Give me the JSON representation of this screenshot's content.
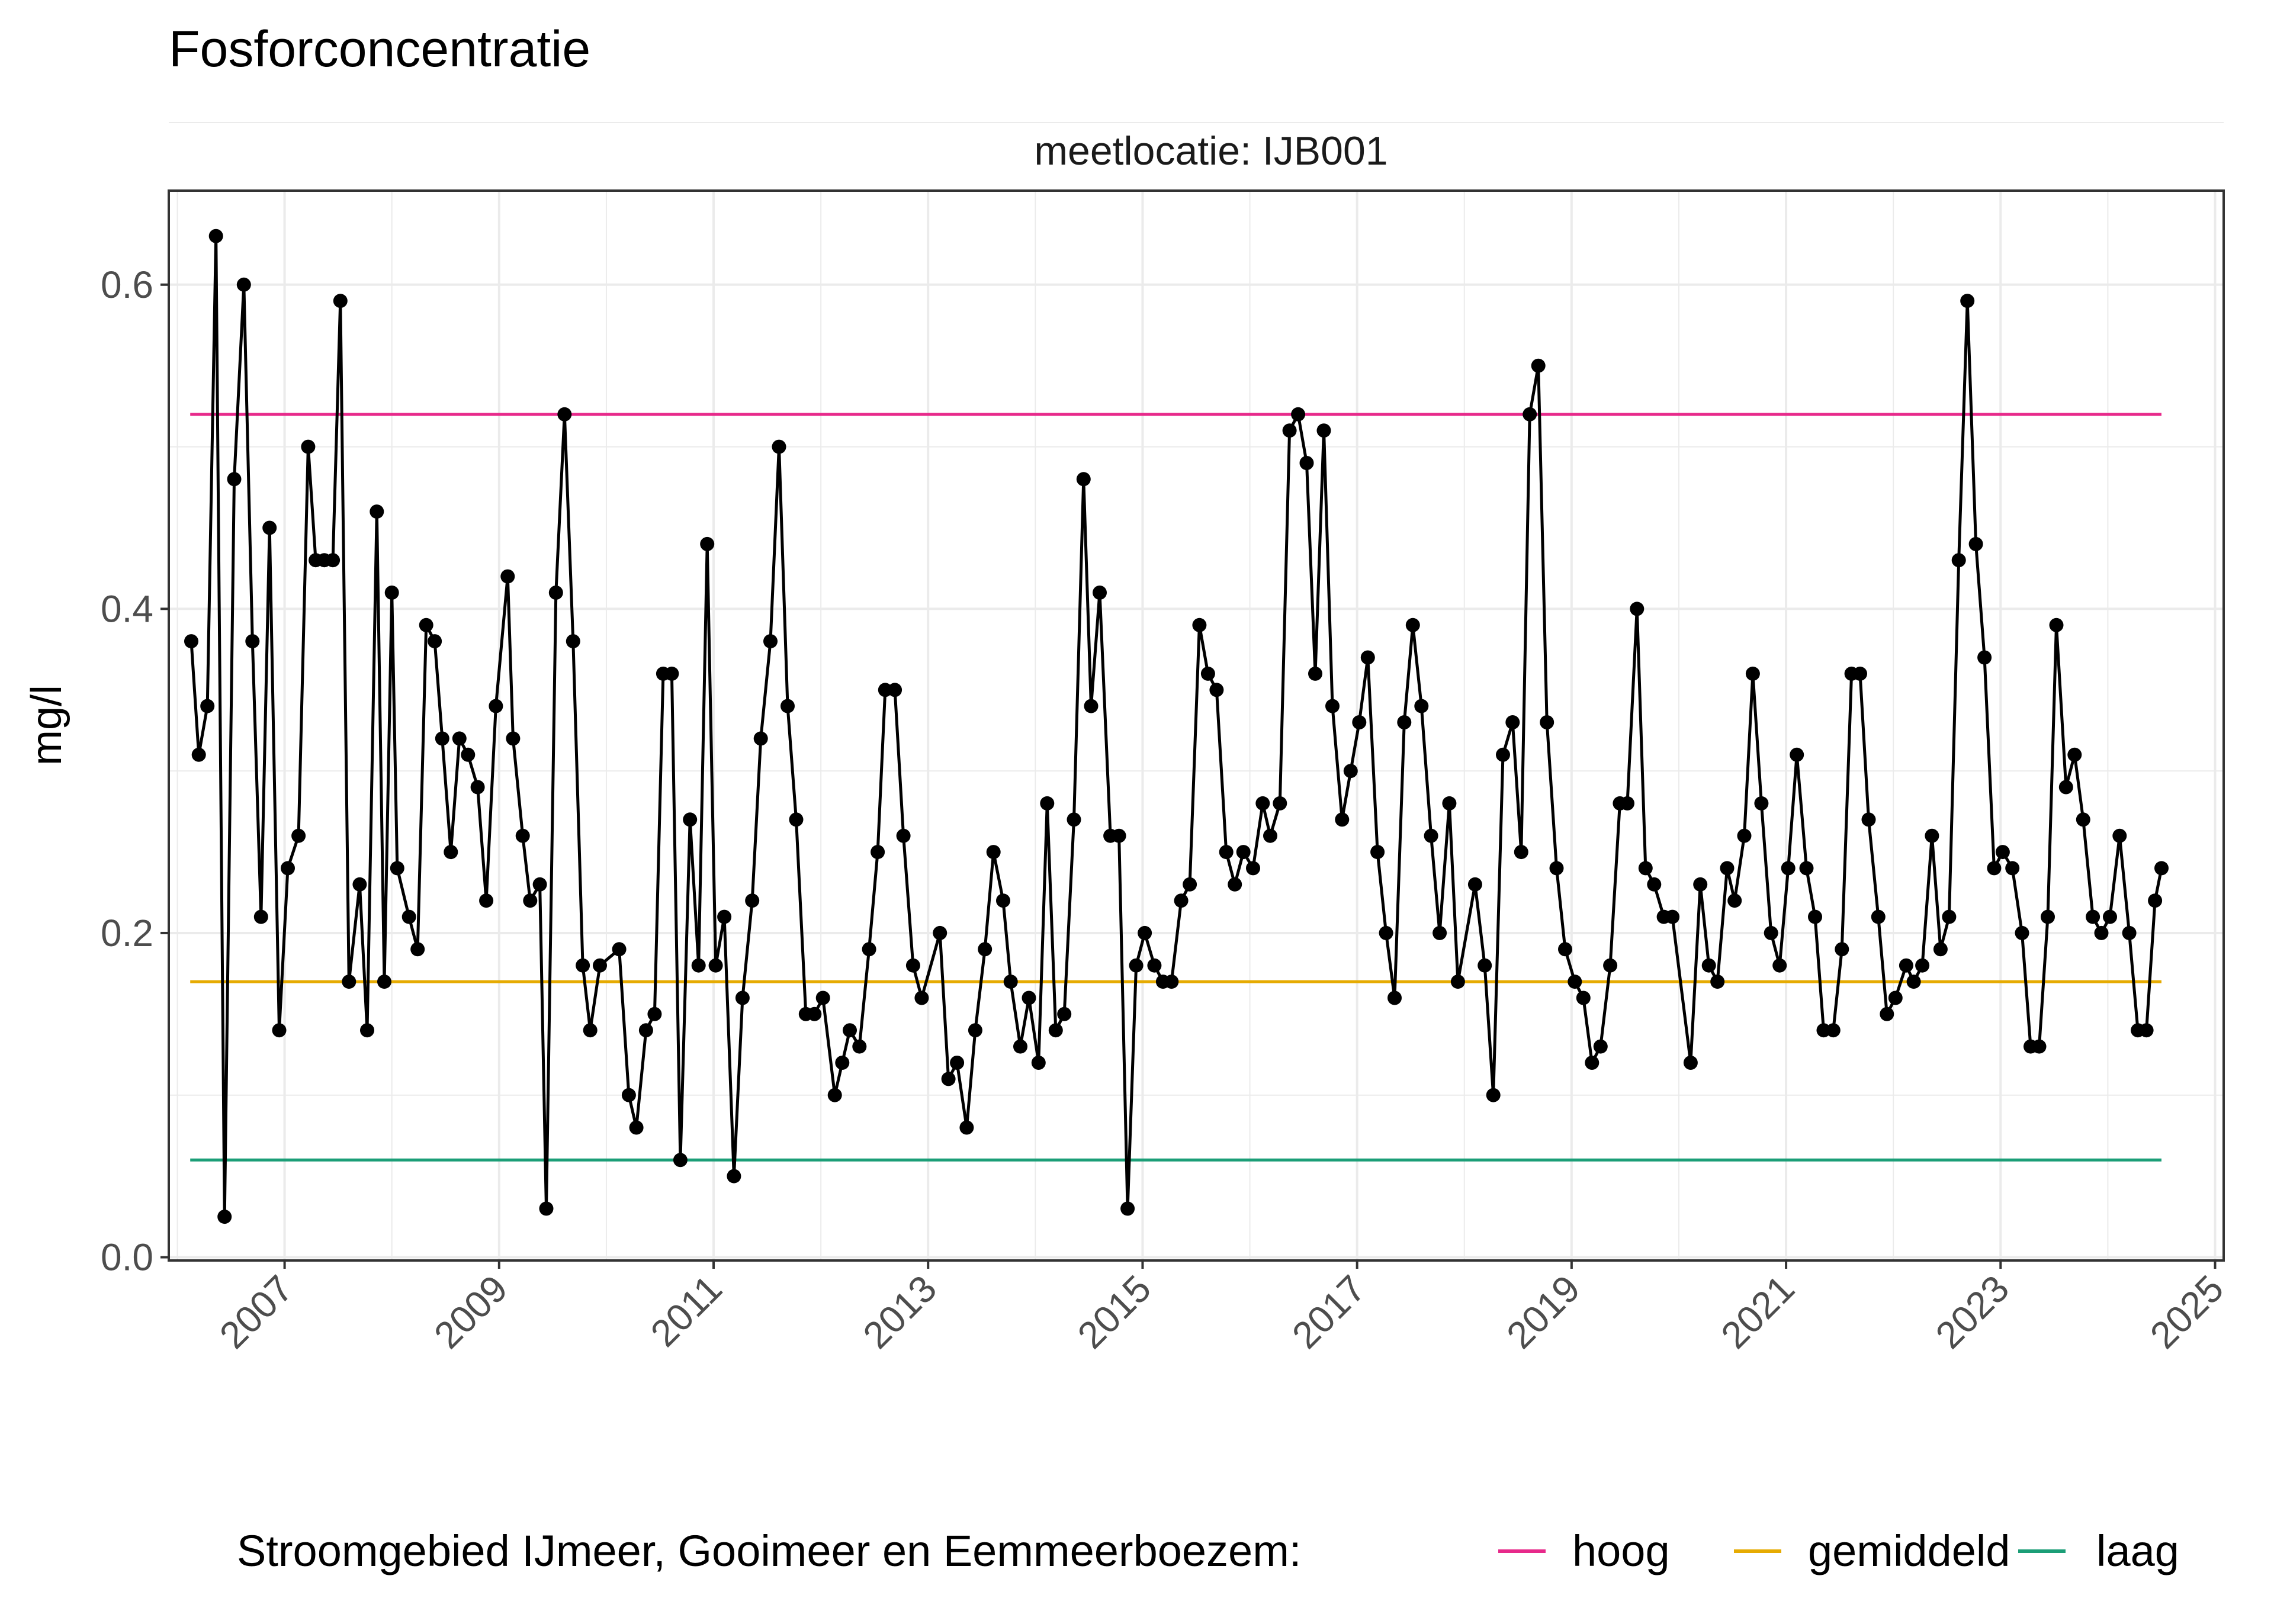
{
  "colors": {
    "hoog": "#e7298a",
    "gemiddeld": "#e6ab02",
    "laag": "#1b9e77",
    "series": "#000000",
    "grid": "#ebebeb",
    "panel_border": "#333333"
  },
  "chart_data": {
    "type": "line",
    "title": "Fosforconcentratie",
    "facet_label": "meetlocatie: IJB001",
    "ylabel": "mg/l",
    "xlabel": "",
    "xlim": [
      2005.92,
      2025.08
    ],
    "ylim": [
      -0.002,
      0.658
    ],
    "x_ticks": [
      "2007",
      "2009",
      "2011",
      "2013",
      "2015",
      "2017",
      "2019",
      "2021",
      "2023",
      "2025"
    ],
    "y_ticks": [
      "0.0",
      "0.2",
      "0.4",
      "0.6"
    ],
    "grid": true,
    "legend_position": "bottom",
    "legend": {
      "title": "Stroomgebied IJmeer, Gooimeer en Eemmeerboezem:",
      "items": [
        "hoog",
        "gemiddeld",
        "laag"
      ]
    },
    "reference_lines": [
      {
        "name": "hoog",
        "value": 0.52,
        "x_start": 2006.12,
        "x_end": 2024.5
      },
      {
        "name": "gemiddeld",
        "value": 0.17,
        "x_start": 2006.12,
        "x_end": 2024.5
      },
      {
        "name": "laag",
        "value": 0.06,
        "x_start": 2006.12,
        "x_end": 2024.5
      }
    ],
    "series": [
      {
        "values": [
          [
            2006.13,
            0.38
          ],
          [
            2006.2,
            0.31
          ],
          [
            2006.28,
            0.34
          ],
          [
            2006.36,
            0.63
          ],
          [
            2006.44,
            0.025
          ],
          [
            2006.53,
            0.48
          ],
          [
            2006.62,
            0.6
          ],
          [
            2006.7,
            0.38
          ],
          [
            2006.78,
            0.21
          ],
          [
            2006.86,
            0.45
          ],
          [
            2006.95,
            0.14
          ],
          [
            2007.03,
            0.24
          ],
          [
            2007.13,
            0.26
          ],
          [
            2007.22,
            0.5
          ],
          [
            2007.29,
            0.43
          ],
          [
            2007.37,
            0.43
          ],
          [
            2007.45,
            0.43
          ],
          [
            2007.52,
            0.59
          ],
          [
            2007.6,
            0.17
          ],
          [
            2007.7,
            0.23
          ],
          [
            2007.77,
            0.14
          ],
          [
            2007.86,
            0.46
          ],
          [
            2007.93,
            0.17
          ],
          [
            2008.0,
            0.41
          ],
          [
            2008.05,
            0.24
          ],
          [
            2008.16,
            0.21
          ],
          [
            2008.24,
            0.19
          ],
          [
            2008.32,
            0.39
          ],
          [
            2008.4,
            0.38
          ],
          [
            2008.47,
            0.32
          ],
          [
            2008.55,
            0.25
          ],
          [
            2008.63,
            0.32
          ],
          [
            2008.71,
            0.31
          ],
          [
            2008.8,
            0.29
          ],
          [
            2008.88,
            0.22
          ],
          [
            2008.97,
            0.34
          ],
          [
            2009.08,
            0.42
          ],
          [
            2009.13,
            0.32
          ],
          [
            2009.22,
            0.26
          ],
          [
            2009.29,
            0.22
          ],
          [
            2009.38,
            0.23
          ],
          [
            2009.44,
            0.03
          ],
          [
            2009.53,
            0.41
          ],
          [
            2009.61,
            0.52
          ],
          [
            2009.69,
            0.38
          ],
          [
            2009.78,
            0.18
          ],
          [
            2009.85,
            0.14
          ],
          [
            2009.94,
            0.18
          ],
          [
            2010.12,
            0.19
          ],
          [
            2010.21,
            0.1
          ],
          [
            2010.28,
            0.08
          ],
          [
            2010.37,
            0.14
          ],
          [
            2010.45,
            0.15
          ],
          [
            2010.53,
            0.36
          ],
          [
            2010.61,
            0.36
          ],
          [
            2010.69,
            0.06
          ],
          [
            2010.78,
            0.27
          ],
          [
            2010.86,
            0.18
          ],
          [
            2010.94,
            0.44
          ],
          [
            2011.02,
            0.18
          ],
          [
            2011.1,
            0.21
          ],
          [
            2011.19,
            0.05
          ],
          [
            2011.27,
            0.16
          ],
          [
            2011.36,
            0.22
          ],
          [
            2011.44,
            0.32
          ],
          [
            2011.53,
            0.38
          ],
          [
            2011.61,
            0.5
          ],
          [
            2011.69,
            0.34
          ],
          [
            2011.77,
            0.27
          ],
          [
            2011.86,
            0.15
          ],
          [
            2011.94,
            0.15
          ],
          [
            2012.02,
            0.16
          ],
          [
            2012.13,
            0.1
          ],
          [
            2012.2,
            0.12
          ],
          [
            2012.27,
            0.14
          ],
          [
            2012.36,
            0.13
          ],
          [
            2012.45,
            0.19
          ],
          [
            2012.53,
            0.25
          ],
          [
            2012.6,
            0.35
          ],
          [
            2012.69,
            0.35
          ],
          [
            2012.77,
            0.26
          ],
          [
            2012.86,
            0.18
          ],
          [
            2012.94,
            0.16
          ],
          [
            2013.11,
            0.2
          ],
          [
            2013.19,
            0.11
          ],
          [
            2013.27,
            0.12
          ],
          [
            2013.36,
            0.08
          ],
          [
            2013.44,
            0.14
          ],
          [
            2013.53,
            0.19
          ],
          [
            2013.61,
            0.25
          ],
          [
            2013.7,
            0.22
          ],
          [
            2013.77,
            0.17
          ],
          [
            2013.86,
            0.13
          ],
          [
            2013.94,
            0.16
          ],
          [
            2014.03,
            0.12
          ],
          [
            2014.11,
            0.28
          ],
          [
            2014.19,
            0.14
          ],
          [
            2014.27,
            0.15
          ],
          [
            2014.36,
            0.27
          ],
          [
            2014.45,
            0.48
          ],
          [
            2014.52,
            0.34
          ],
          [
            2014.6,
            0.41
          ],
          [
            2014.7,
            0.26
          ],
          [
            2014.78,
            0.26
          ],
          [
            2014.86,
            0.03
          ],
          [
            2014.94,
            0.18
          ],
          [
            2015.02,
            0.2
          ],
          [
            2015.11,
            0.18
          ],
          [
            2015.19,
            0.17
          ],
          [
            2015.27,
            0.17
          ],
          [
            2015.36,
            0.22
          ],
          [
            2015.44,
            0.23
          ],
          [
            2015.53,
            0.39
          ],
          [
            2015.61,
            0.36
          ],
          [
            2015.69,
            0.35
          ],
          [
            2015.78,
            0.25
          ],
          [
            2015.86,
            0.23
          ],
          [
            2015.94,
            0.25
          ],
          [
            2016.03,
            0.24
          ],
          [
            2016.12,
            0.28
          ],
          [
            2016.19,
            0.26
          ],
          [
            2016.28,
            0.28
          ],
          [
            2016.37,
            0.51
          ],
          [
            2016.45,
            0.52
          ],
          [
            2016.53,
            0.49
          ],
          [
            2016.61,
            0.36
          ],
          [
            2016.69,
            0.51
          ],
          [
            2016.77,
            0.34
          ],
          [
            2016.86,
            0.27
          ],
          [
            2016.94,
            0.3
          ],
          [
            2017.02,
            0.33
          ],
          [
            2017.1,
            0.37
          ],
          [
            2017.19,
            0.25
          ],
          [
            2017.27,
            0.2
          ],
          [
            2017.35,
            0.16
          ],
          [
            2017.44,
            0.33
          ],
          [
            2017.52,
            0.39
          ],
          [
            2017.6,
            0.34
          ],
          [
            2017.69,
            0.26
          ],
          [
            2017.77,
            0.2
          ],
          [
            2017.86,
            0.28
          ],
          [
            2017.94,
            0.17
          ],
          [
            2018.1,
            0.23
          ],
          [
            2018.19,
            0.18
          ],
          [
            2018.27,
            0.1
          ],
          [
            2018.36,
            0.31
          ],
          [
            2018.45,
            0.33
          ],
          [
            2018.53,
            0.25
          ],
          [
            2018.61,
            0.52
          ],
          [
            2018.69,
            0.55
          ],
          [
            2018.77,
            0.33
          ],
          [
            2018.86,
            0.24
          ],
          [
            2018.94,
            0.19
          ],
          [
            2019.03,
            0.17
          ],
          [
            2019.11,
            0.16
          ],
          [
            2019.19,
            0.12
          ],
          [
            2019.27,
            0.13
          ],
          [
            2019.36,
            0.18
          ],
          [
            2019.45,
            0.28
          ],
          [
            2019.52,
            0.28
          ],
          [
            2019.61,
            0.4
          ],
          [
            2019.69,
            0.24
          ],
          [
            2019.77,
            0.23
          ],
          [
            2019.86,
            0.21
          ],
          [
            2019.94,
            0.21
          ],
          [
            2020.11,
            0.12
          ],
          [
            2020.2,
            0.23
          ],
          [
            2020.28,
            0.18
          ],
          [
            2020.36,
            0.17
          ],
          [
            2020.45,
            0.24
          ],
          [
            2020.52,
            0.22
          ],
          [
            2020.61,
            0.26
          ],
          [
            2020.69,
            0.36
          ],
          [
            2020.77,
            0.28
          ],
          [
            2020.86,
            0.2
          ],
          [
            2020.94,
            0.18
          ],
          [
            2021.02,
            0.24
          ],
          [
            2021.1,
            0.31
          ],
          [
            2021.19,
            0.24
          ],
          [
            2021.27,
            0.21
          ],
          [
            2021.35,
            0.14
          ],
          [
            2021.44,
            0.14
          ],
          [
            2021.52,
            0.19
          ],
          [
            2021.61,
            0.36
          ],
          [
            2021.69,
            0.36
          ],
          [
            2021.77,
            0.27
          ],
          [
            2021.86,
            0.21
          ],
          [
            2021.94,
            0.15
          ],
          [
            2022.02,
            0.16
          ],
          [
            2022.12,
            0.18
          ],
          [
            2022.19,
            0.17
          ],
          [
            2022.27,
            0.18
          ],
          [
            2022.36,
            0.26
          ],
          [
            2022.44,
            0.19
          ],
          [
            2022.52,
            0.21
          ],
          [
            2022.61,
            0.43
          ],
          [
            2022.69,
            0.59
          ],
          [
            2022.77,
            0.44
          ],
          [
            2022.85,
            0.37
          ],
          [
            2022.94,
            0.24
          ],
          [
            2023.02,
            0.25
          ],
          [
            2023.11,
            0.24
          ],
          [
            2023.2,
            0.2
          ],
          [
            2023.28,
            0.13
          ],
          [
            2023.36,
            0.13
          ],
          [
            2023.44,
            0.21
          ],
          [
            2023.52,
            0.39
          ],
          [
            2023.61,
            0.29
          ],
          [
            2023.69,
            0.31
          ],
          [
            2023.77,
            0.27
          ],
          [
            2023.86,
            0.21
          ],
          [
            2023.94,
            0.2
          ],
          [
            2024.02,
            0.21
          ],
          [
            2024.11,
            0.26
          ],
          [
            2024.2,
            0.2
          ],
          [
            2024.28,
            0.14
          ],
          [
            2024.36,
            0.14
          ],
          [
            2024.44,
            0.22
          ],
          [
            2024.5,
            0.24
          ]
        ]
      }
    ]
  }
}
